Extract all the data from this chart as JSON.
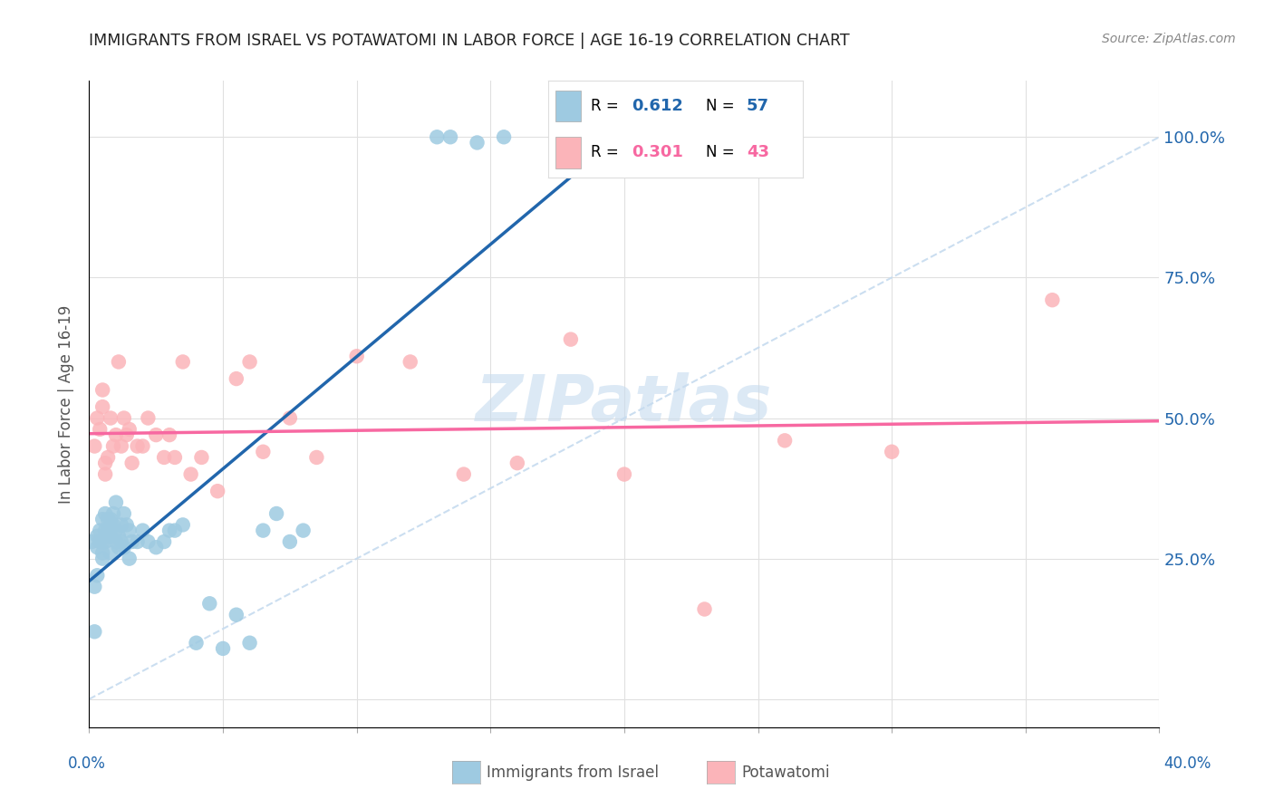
{
  "title": "IMMIGRANTS FROM ISRAEL VS POTAWATOMI IN LABOR FORCE | AGE 16-19 CORRELATION CHART",
  "source": "Source: ZipAtlas.com",
  "ylabel": "In Labor Force | Age 16-19",
  "legend_label1": "Immigrants from Israel",
  "legend_label2": "Potawatomi",
  "R1": "0.612",
  "N1": "57",
  "R2": "0.301",
  "N2": "43",
  "color_blue_scatter": "#9ecae1",
  "color_pink_scatter": "#fbb4b9",
  "color_blue_line": "#2166ac",
  "color_pink_line": "#f768a1",
  "color_diag": "#c6dbef",
  "color_grid": "#e0e0e0",
  "watermark_text": "ZIPatlas",
  "watermark_color": "#c6dbef",
  "xlim": [
    0.0,
    0.4
  ],
  "ylim": [
    -0.05,
    1.1
  ],
  "right_yticks": [
    0.0,
    0.25,
    0.5,
    0.75,
    1.0
  ],
  "right_yticklabels": [
    "",
    "25.0%",
    "50.0%",
    "75.0%",
    "100.0%"
  ],
  "blue_x": [
    0.001,
    0.002,
    0.002,
    0.003,
    0.003,
    0.003,
    0.004,
    0.004,
    0.005,
    0.005,
    0.005,
    0.005,
    0.006,
    0.006,
    0.006,
    0.007,
    0.007,
    0.007,
    0.008,
    0.008,
    0.008,
    0.009,
    0.009,
    0.01,
    0.01,
    0.01,
    0.011,
    0.011,
    0.012,
    0.012,
    0.013,
    0.013,
    0.014,
    0.015,
    0.015,
    0.016,
    0.018,
    0.02,
    0.022,
    0.025,
    0.028,
    0.03,
    0.032,
    0.035,
    0.04,
    0.045,
    0.05,
    0.055,
    0.06,
    0.065,
    0.07,
    0.075,
    0.08,
    0.13,
    0.135,
    0.145,
    0.155
  ],
  "blue_y": [
    0.28,
    0.12,
    0.2,
    0.27,
    0.29,
    0.22,
    0.3,
    0.28,
    0.25,
    0.32,
    0.28,
    0.26,
    0.3,
    0.33,
    0.28,
    0.3,
    0.32,
    0.3,
    0.26,
    0.29,
    0.32,
    0.31,
    0.33,
    0.28,
    0.35,
    0.3,
    0.27,
    0.29,
    0.31,
    0.28,
    0.27,
    0.33,
    0.31,
    0.3,
    0.25,
    0.28,
    0.28,
    0.3,
    0.28,
    0.27,
    0.28,
    0.3,
    0.3,
    0.31,
    0.1,
    0.17,
    0.09,
    0.15,
    0.1,
    0.3,
    0.33,
    0.28,
    0.3,
    1.0,
    1.0,
    0.99,
    1.0
  ],
  "pink_x": [
    0.002,
    0.003,
    0.004,
    0.005,
    0.005,
    0.006,
    0.006,
    0.007,
    0.008,
    0.009,
    0.01,
    0.011,
    0.012,
    0.013,
    0.014,
    0.015,
    0.016,
    0.018,
    0.02,
    0.022,
    0.025,
    0.028,
    0.03,
    0.032,
    0.035,
    0.038,
    0.042,
    0.048,
    0.055,
    0.06,
    0.065,
    0.075,
    0.085,
    0.1,
    0.12,
    0.14,
    0.16,
    0.18,
    0.2,
    0.23,
    0.26,
    0.3,
    0.36
  ],
  "pink_y": [
    0.45,
    0.5,
    0.48,
    0.55,
    0.52,
    0.4,
    0.42,
    0.43,
    0.5,
    0.45,
    0.47,
    0.6,
    0.45,
    0.5,
    0.47,
    0.48,
    0.42,
    0.45,
    0.45,
    0.5,
    0.47,
    0.43,
    0.47,
    0.43,
    0.6,
    0.4,
    0.43,
    0.37,
    0.57,
    0.6,
    0.44,
    0.5,
    0.43,
    0.61,
    0.6,
    0.4,
    0.42,
    0.64,
    0.4,
    0.16,
    0.46,
    0.44,
    0.71
  ]
}
